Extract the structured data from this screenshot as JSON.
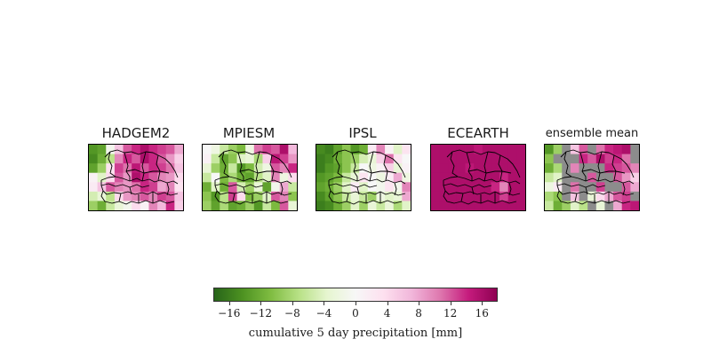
{
  "colors": {
    "scale": [
      "#276419",
      "#4d9221",
      "#7fbc41",
      "#b8e186",
      "#e6f5d0",
      "#f7f7f7",
      "#fde0ef",
      "#f1b6da",
      "#de77ae",
      "#c51b7d",
      "#8e0152"
    ],
    "masked": "#8c8c8c",
    "border_lines": "#000000"
  },
  "panels": [
    {
      "title": "HADGEM2",
      "grid": [
        [
          -14,
          -13,
          -1,
          6,
          12,
          14,
          16,
          14,
          13,
          12,
          8
        ],
        [
          -15,
          -12,
          -7,
          10,
          14,
          12,
          16,
          14,
          12,
          9,
          5
        ],
        [
          -13,
          -9,
          3,
          13,
          11,
          15,
          12,
          14,
          13,
          11,
          6
        ],
        [
          1,
          -4,
          4,
          12,
          9,
          16,
          14,
          12,
          10,
          9,
          4
        ],
        [
          2,
          6,
          12,
          10,
          9,
          11,
          14,
          13,
          8,
          10,
          3
        ],
        [
          -5,
          -3,
          -7,
          4,
          9,
          10,
          12,
          10,
          13,
          12,
          6
        ],
        [
          -9,
          -12,
          -6,
          -3,
          -1,
          4,
          1,
          10,
          7,
          14,
          5
        ]
      ]
    },
    {
      "title": "MPIESM",
      "grid": [
        [
          0,
          -2,
          -6,
          -9,
          -11,
          -2,
          11,
          13,
          12,
          16,
          7
        ],
        [
          1,
          -6,
          -13,
          -10,
          -4,
          -3,
          -8,
          5,
          15,
          13,
          9
        ],
        [
          -3,
          -9,
          -12,
          -6,
          -14,
          -11,
          -5,
          -2,
          12,
          10,
          14
        ],
        [
          -6,
          0,
          -11,
          -8,
          -12,
          -13,
          -7,
          -4,
          10,
          -2,
          4
        ],
        [
          -12,
          -4,
          -12,
          12,
          -5,
          -9,
          -3,
          -13,
          -1,
          8,
          -6
        ],
        [
          -10,
          -14,
          -7,
          13,
          4,
          -11,
          -9,
          -4,
          12,
          10,
          -10
        ],
        [
          -9,
          -13,
          -8,
          -13,
          -12,
          -9,
          -14,
          -6,
          -11,
          12,
          -3
        ]
      ]
    },
    {
      "title": "IPSL",
      "grid": [
        [
          -15,
          -16,
          -13,
          -10,
          -14,
          -12,
          2,
          10,
          1,
          -4,
          3
        ],
        [
          -16,
          -15,
          -12,
          -10,
          -9,
          -5,
          -3,
          5,
          11,
          3,
          0
        ],
        [
          -16,
          -14,
          -13,
          -10,
          -6,
          0,
          -2,
          1,
          5,
          -3,
          1
        ],
        [
          -14,
          -13,
          -11,
          -6,
          -3,
          3,
          0,
          -2,
          2,
          8,
          -2
        ],
        [
          -13,
          -12,
          -9,
          -4,
          2,
          -4,
          0,
          -1,
          3,
          -1,
          10
        ],
        [
          -15,
          -13,
          -10,
          -6,
          -3,
          -6,
          -9,
          -2,
          -4,
          -3,
          8
        ],
        [
          -16,
          -15,
          -12,
          -9,
          -4,
          -9,
          -3,
          -6,
          -3,
          -8,
          -4
        ]
      ]
    },
    {
      "title": "ECEARTH",
      "grid": [
        [
          16,
          16,
          16,
          16,
          16,
          15,
          16,
          16,
          16,
          16,
          16
        ],
        [
          16,
          16,
          16,
          16,
          16,
          16,
          16,
          16,
          16,
          16,
          16
        ],
        [
          16,
          16,
          16,
          16,
          15,
          16,
          16,
          16,
          16,
          16,
          16
        ],
        [
          16,
          16,
          16,
          16,
          16,
          16,
          16,
          16,
          14,
          16,
          16
        ],
        [
          16,
          16,
          16,
          16,
          16,
          16,
          16,
          14,
          10,
          16,
          16
        ],
        [
          16,
          16,
          16,
          16,
          16,
          16,
          16,
          16,
          13,
          16,
          16
        ],
        [
          16,
          16,
          16,
          16,
          16,
          16,
          16,
          16,
          16,
          16,
          16
        ]
      ]
    },
    {
      "title": "ensemble mean",
      "grid": [
        [
          -14,
          -9,
          "m",
          6,
          12,
          "m",
          11,
          14,
          15,
          16,
          "m"
        ],
        [
          -10,
          "m",
          "m",
          "m",
          14,
          12,
          16,
          13,
          14,
          11,
          "m"
        ],
        [
          -12,
          -8,
          "m",
          10,
          "m",
          "m",
          "m",
          14,
          13,
          12,
          10
        ],
        [
          -6,
          -4,
          "m",
          "m",
          "m",
          12,
          "m",
          "m",
          12,
          9,
          5
        ],
        [
          -2,
          2,
          "m",
          11,
          "m",
          "m",
          13,
          "m",
          "m",
          12,
          8
        ],
        [
          -8,
          -10,
          "m",
          6,
          "m",
          -3,
          4,
          8,
          12,
          13,
          "m"
        ],
        [
          -6,
          -12,
          -9,
          -4,
          -7,
          "m",
          -3,
          "m",
          8,
          14,
          15
        ]
      ]
    }
  ],
  "colorbar": {
    "min": -18,
    "max": 18,
    "ticks": [
      -16,
      -12,
      -8,
      -4,
      0,
      4,
      8,
      12,
      16
    ],
    "tick_labels": [
      "−16",
      "−12",
      "−8",
      "−4",
      "0",
      "4",
      "8",
      "12",
      "16"
    ],
    "label": "cumulative 5 day precipitation [mm]"
  }
}
